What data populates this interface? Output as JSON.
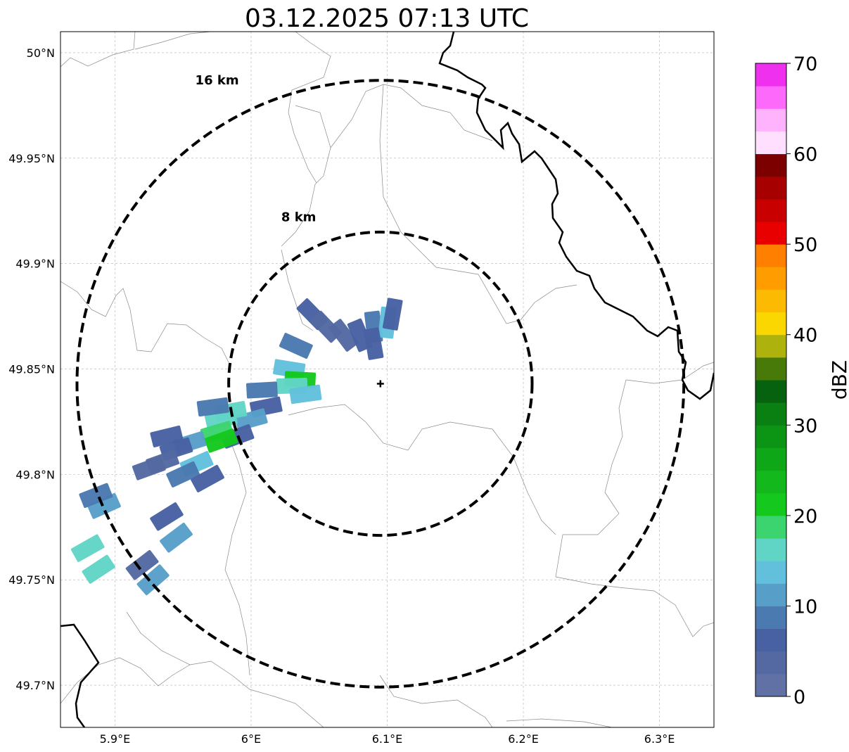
{
  "title": "03.12.2025 07:13 UTC",
  "map": {
    "lon_range": [
      5.86,
      6.34
    ],
    "lat_range": [
      49.68,
      50.01
    ],
    "x_ticks": [
      {
        "value": 5.9,
        "label": "5.9°E"
      },
      {
        "value": 6.0,
        "label": "6°E"
      },
      {
        "value": 6.1,
        "label": "6.1°E"
      },
      {
        "value": 6.2,
        "label": "6.2°E"
      },
      {
        "value": 6.3,
        "label": "6.3°E"
      }
    ],
    "y_ticks": [
      {
        "value": 50.0,
        "label": "50°N"
      },
      {
        "value": 49.95,
        "label": "49.95°N"
      },
      {
        "value": 49.9,
        "label": "49.9°N"
      },
      {
        "value": 49.85,
        "label": "49.85°N"
      },
      {
        "value": 49.8,
        "label": "49.8°N"
      },
      {
        "value": 49.75,
        "label": "49.75°N"
      },
      {
        "value": 49.7,
        "label": "49.7°N"
      }
    ],
    "grid": true,
    "radar_center": {
      "lon": 6.095,
      "lat": 49.843
    },
    "range_rings": [
      {
        "label": "8 km",
        "radius_km": 8,
        "label_lon": 6.035,
        "label_lat": 49.92
      },
      {
        "label": "16 km",
        "radius_km": 16,
        "label_lon": 5.975,
        "label_lat": 49.985
      }
    ]
  },
  "colorbar": {
    "unit": "dBZ",
    "min": 0,
    "max": 70,
    "tick_values": [
      0,
      10,
      20,
      30,
      40,
      50,
      60,
      70
    ],
    "colors": [
      "#6171a6",
      "#5469a1",
      "#4861a2",
      "#4a7ab0",
      "#579fc8",
      "#62c0dc",
      "#60d5c5",
      "#3cd46f",
      "#14c81e",
      "#12b81c",
      "#0ea717",
      "#0c9514",
      "#0a7f12",
      "#07620f",
      "#487a0a",
      "#aeb20c",
      "#fbd701",
      "#fdba02",
      "#fe9c00",
      "#ff8000",
      "#e80000",
      "#c80000",
      "#a60000",
      "#7d0000",
      "#ffdffd",
      "#feb3fc",
      "#fd69fa",
      "#ef30ef"
    ]
  },
  "echoes": [
    {
      "lon": 6.045,
      "lat": 49.876,
      "dbz": 5
    },
    {
      "lon": 6.055,
      "lat": 49.87,
      "dbz": 3
    },
    {
      "lon": 6.068,
      "lat": 49.866,
      "dbz": 4
    },
    {
      "lon": 6.08,
      "lat": 49.866,
      "dbz": 6
    },
    {
      "lon": 6.09,
      "lat": 49.87,
      "dbz": 8
    },
    {
      "lon": 6.1,
      "lat": 49.872,
      "dbz": 13
    },
    {
      "lon": 6.104,
      "lat": 49.876,
      "dbz": 7
    },
    {
      "lon": 6.09,
      "lat": 49.862,
      "dbz": 5
    },
    {
      "lon": 6.033,
      "lat": 49.861,
      "dbz": 9
    },
    {
      "lon": 6.028,
      "lat": 49.85,
      "dbz": 14
    },
    {
      "lon": 6.036,
      "lat": 49.845,
      "dbz": 21
    },
    {
      "lon": 6.03,
      "lat": 49.842,
      "dbz": 16
    },
    {
      "lon": 6.011,
      "lat": 49.832,
      "dbz": 7
    },
    {
      "lon": 6.0,
      "lat": 49.826,
      "dbz": 10
    },
    {
      "lon": 5.99,
      "lat": 49.818,
      "dbz": 5
    },
    {
      "lon": 5.978,
      "lat": 49.826,
      "dbz": 17
    },
    {
      "lon": 5.985,
      "lat": 49.83,
      "dbz": 16
    },
    {
      "lon": 5.972,
      "lat": 49.832,
      "dbz": 8
    },
    {
      "lon": 5.975,
      "lat": 49.82,
      "dbz": 19
    },
    {
      "lon": 5.978,
      "lat": 49.816,
      "dbz": 22
    },
    {
      "lon": 5.955,
      "lat": 49.815,
      "dbz": 11
    },
    {
      "lon": 5.945,
      "lat": 49.812,
      "dbz": 6
    },
    {
      "lon": 5.935,
      "lat": 49.806,
      "dbz": 4
    },
    {
      "lon": 5.96,
      "lat": 49.805,
      "dbz": 13
    },
    {
      "lon": 5.95,
      "lat": 49.8,
      "dbz": 8
    },
    {
      "lon": 5.925,
      "lat": 49.803,
      "dbz": 3
    },
    {
      "lon": 5.968,
      "lat": 49.798,
      "dbz": 6
    },
    {
      "lon": 5.938,
      "lat": 49.818,
      "dbz": 5
    },
    {
      "lon": 5.892,
      "lat": 49.785,
      "dbz": 12
    },
    {
      "lon": 5.886,
      "lat": 49.79,
      "dbz": 8
    },
    {
      "lon": 5.938,
      "lat": 49.78,
      "dbz": 6
    },
    {
      "lon": 5.945,
      "lat": 49.77,
      "dbz": 11
    },
    {
      "lon": 5.88,
      "lat": 49.765,
      "dbz": 17
    },
    {
      "lon": 5.888,
      "lat": 49.755,
      "dbz": 17
    },
    {
      "lon": 5.92,
      "lat": 49.757,
      "dbz": 4
    },
    {
      "lon": 5.928,
      "lat": 49.75,
      "dbz": 12
    },
    {
      "lon": 6.04,
      "lat": 49.838,
      "dbz": 13
    },
    {
      "lon": 6.008,
      "lat": 49.84,
      "dbz": 8
    }
  ]
}
